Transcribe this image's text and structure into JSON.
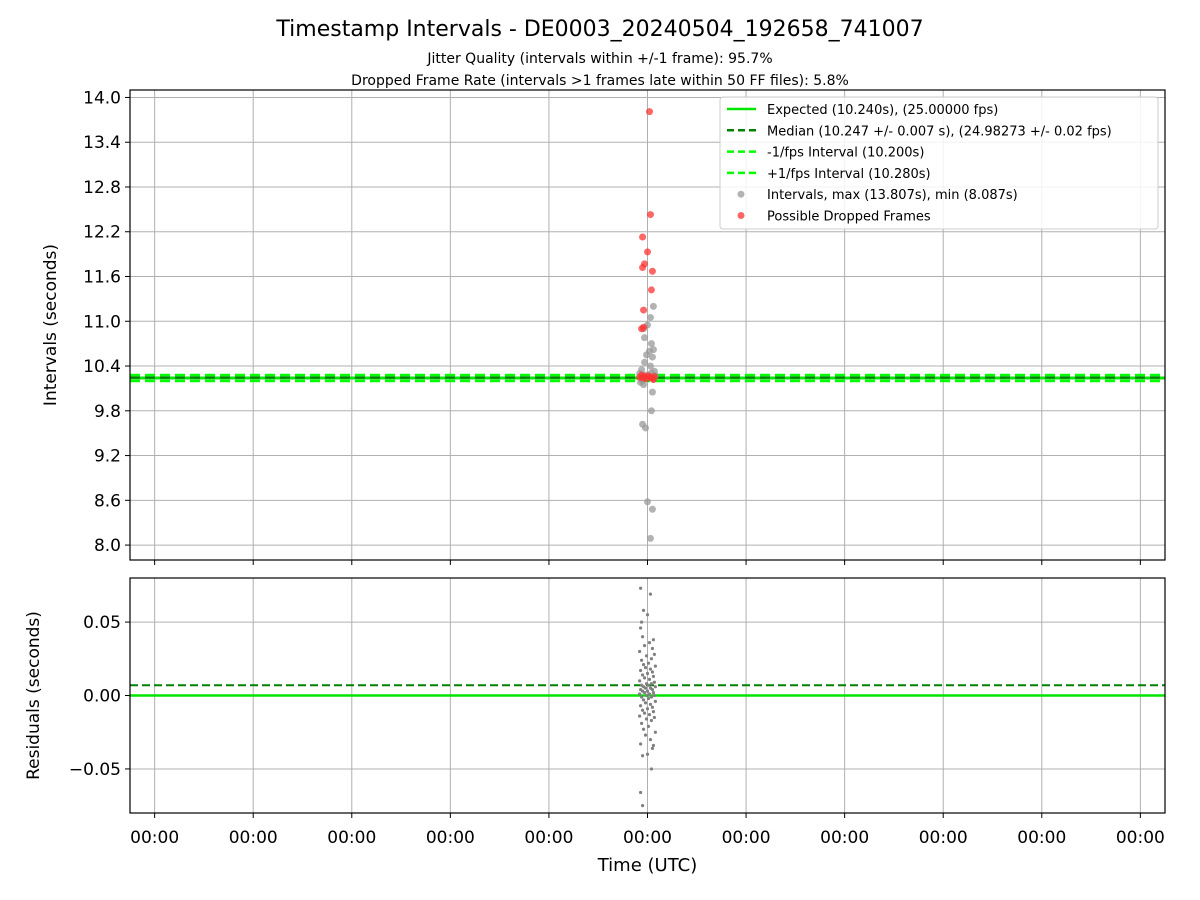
{
  "title": "Timestamp Intervals - DE0003_20240504_192658_741007",
  "subtitle_1": "Jitter Quality (intervals within +/-1 frame): 95.7%",
  "subtitle_2": "Dropped Frame Rate (intervals >1 frames late within 50 FF files): 5.8%",
  "colors": {
    "expected": "#00e600",
    "median": "#008000",
    "interval_band": "#00ff00",
    "intervals": "#999999",
    "dropped": "#ff3333",
    "residuals": "#808080",
    "grid": "#b0b0b0"
  },
  "chart_data": [
    {
      "type": "scatter",
      "panel": "top",
      "ylabel": "Intervals (seconds)",
      "ylim": [
        7.8,
        14.1
      ],
      "yticks": [
        8.0,
        8.6,
        9.2,
        9.8,
        10.4,
        11.0,
        11.6,
        12.2,
        12.8,
        13.4,
        14.0
      ],
      "ytick_labels": [
        "8.0",
        "8.6",
        "9.2",
        "9.8",
        "10.4",
        "11.0",
        "11.6",
        "12.2",
        "12.8",
        "13.4",
        "14.0"
      ],
      "xlim": [
        -5.25,
        5.25
      ],
      "xticks": [
        -5,
        -4,
        -3,
        -2,
        -1,
        0,
        1,
        2,
        3,
        4,
        5
      ],
      "grid": true,
      "legend_position": "top-right",
      "legend": [
        {
          "label": "Expected (10.240s), (25.00000 fps)",
          "style": "solid",
          "color": "#00e600"
        },
        {
          "label": "Median (10.247 +/- 0.007 s), (24.98273 +/- 0.02 fps)",
          "style": "dashed",
          "color": "#008000"
        },
        {
          "label": "-1/fps Interval (10.200s)",
          "style": "dashed",
          "color": "#00ff00"
        },
        {
          "label": "+1/fps Interval (10.280s)",
          "style": "dashed",
          "color": "#00ff00"
        },
        {
          "label": "Intervals, max (13.807s), min (8.087s)",
          "style": "marker",
          "color": "#999999"
        },
        {
          "label": "Possible Dropped Frames",
          "style": "marker",
          "color": "#ff3333"
        }
      ],
      "lines": {
        "expected": 10.24,
        "median": 10.247,
        "minus_1fps": 10.2,
        "plus_1fps": 10.28
      },
      "series": [
        {
          "name": "Intervals, max (13.807s), min (8.087s)",
          "points": [
            [
              -0.08,
              10.3
            ],
            [
              -0.05,
              10.2
            ],
            [
              -0.02,
              10.28
            ],
            [
              0.01,
              10.25
            ],
            [
              0.04,
              10.31
            ],
            [
              0.06,
              10.22
            ],
            [
              -0.06,
              10.35
            ],
            [
              0.03,
              10.4
            ],
            [
              -0.03,
              10.45
            ],
            [
              0.05,
              10.52
            ],
            [
              -0.01,
              10.55
            ],
            [
              0.02,
              10.6
            ],
            [
              0.04,
              10.7
            ],
            [
              0.06,
              10.62
            ],
            [
              -0.03,
              10.78
            ],
            [
              0.0,
              10.95
            ],
            [
              -0.04,
              10.9
            ],
            [
              0.03,
              11.05
            ],
            [
              0.06,
              11.2
            ],
            [
              0.05,
              10.05
            ],
            [
              0.04,
              9.8
            ],
            [
              -0.05,
              9.62
            ],
            [
              -0.02,
              9.57
            ],
            [
              0.0,
              8.58
            ],
            [
              0.05,
              8.48
            ],
            [
              0.03,
              8.09
            ],
            [
              -0.07,
              10.18
            ],
            [
              0.07,
              10.33
            ],
            [
              -0.04,
              10.15
            ],
            [
              0.08,
              10.27
            ]
          ]
        },
        {
          "name": "Possible Dropped Frames",
          "points": [
            [
              0.02,
              13.81
            ],
            [
              0.03,
              12.43
            ],
            [
              -0.05,
              12.13
            ],
            [
              0.0,
              11.93
            ],
            [
              -0.03,
              11.77
            ],
            [
              -0.05,
              11.72
            ],
            [
              0.05,
              11.67
            ],
            [
              0.04,
              11.42
            ],
            [
              -0.04,
              11.15
            ],
            [
              -0.04,
              10.92
            ],
            [
              -0.06,
              10.9
            ],
            [
              -0.08,
              10.25
            ],
            [
              -0.05,
              10.24
            ],
            [
              -0.03,
              10.26
            ],
            [
              -0.01,
              10.23
            ],
            [
              0.01,
              10.27
            ],
            [
              0.03,
              10.25
            ],
            [
              0.05,
              10.24
            ],
            [
              0.07,
              10.26
            ],
            [
              -0.06,
              10.28
            ],
            [
              0.06,
              10.22
            ]
          ]
        }
      ]
    },
    {
      "type": "scatter",
      "panel": "bottom",
      "ylabel": "Residuals (seconds)",
      "xlabel": "Time (UTC)",
      "ylim": [
        -0.08,
        0.08
      ],
      "yticks": [
        -0.05,
        0.0,
        0.05
      ],
      "ytick_labels": [
        "−0.05",
        "0.00",
        "0.05"
      ],
      "xlim": [
        -5.25,
        5.25
      ],
      "xticks": [
        -5,
        -4,
        -3,
        -2,
        -1,
        0,
        1,
        2,
        3,
        4,
        5
      ],
      "xtick_labels": [
        "00:00",
        "00:00",
        "00:00",
        "00:00",
        "00:00",
        "00:00",
        "00:00",
        "00:00",
        "00:00",
        "00:00",
        "00:00"
      ],
      "grid": true,
      "lines": {
        "zero": 0.0,
        "median_residual": 0.007
      },
      "series": [
        {
          "name": "Residuals",
          "points": [
            [
              -0.07,
              0.073
            ],
            [
              0.03,
              0.069
            ],
            [
              -0.04,
              0.058
            ],
            [
              0.0,
              0.055
            ],
            [
              -0.06,
              0.05
            ],
            [
              -0.07,
              0.046
            ],
            [
              -0.05,
              0.04
            ],
            [
              0.06,
              0.038
            ],
            [
              0.02,
              0.036
            ],
            [
              -0.03,
              0.034
            ],
            [
              0.05,
              0.032
            ],
            [
              -0.08,
              0.03
            ],
            [
              0.07,
              0.028
            ],
            [
              -0.01,
              0.027
            ],
            [
              0.04,
              0.025
            ],
            [
              -0.06,
              0.024
            ],
            [
              0.01,
              0.022
            ],
            [
              -0.04,
              0.021
            ],
            [
              0.08,
              0.02
            ],
            [
              -0.02,
              0.019
            ],
            [
              0.03,
              0.018
            ],
            [
              -0.07,
              0.017
            ],
            [
              0.05,
              0.016
            ],
            [
              0.0,
              0.015
            ],
            [
              -0.05,
              0.014
            ],
            [
              0.06,
              0.013
            ],
            [
              -0.03,
              0.012
            ],
            [
              0.02,
              0.011
            ],
            [
              -0.08,
              0.01
            ],
            [
              0.07,
              0.009
            ],
            [
              -0.01,
              0.008
            ],
            [
              0.04,
              0.008
            ],
            [
              -0.06,
              0.007
            ],
            [
              0.01,
              0.007
            ],
            [
              -0.04,
              0.006
            ],
            [
              0.08,
              0.006
            ],
            [
              -0.02,
              0.005
            ],
            [
              0.03,
              0.005
            ],
            [
              -0.07,
              0.004
            ],
            [
              0.05,
              0.004
            ],
            [
              0.0,
              0.003
            ],
            [
              -0.05,
              0.003
            ],
            [
              0.06,
              0.002
            ],
            [
              -0.03,
              0.002
            ],
            [
              0.02,
              0.001
            ],
            [
              -0.08,
              0.001
            ],
            [
              0.07,
              0.0
            ],
            [
              -0.01,
              0.0
            ],
            [
              0.04,
              -0.001
            ],
            [
              -0.06,
              -0.001
            ],
            [
              0.01,
              -0.002
            ],
            [
              -0.04,
              -0.003
            ],
            [
              0.08,
              -0.004
            ],
            [
              -0.02,
              -0.005
            ],
            [
              0.03,
              -0.006
            ],
            [
              -0.07,
              -0.007
            ],
            [
              0.05,
              -0.008
            ],
            [
              0.0,
              -0.009
            ],
            [
              -0.05,
              -0.01
            ],
            [
              0.06,
              -0.011
            ],
            [
              -0.03,
              -0.012
            ],
            [
              0.02,
              -0.013
            ],
            [
              -0.08,
              -0.014
            ],
            [
              0.07,
              -0.015
            ],
            [
              -0.01,
              -0.016
            ],
            [
              0.04,
              -0.017
            ],
            [
              -0.06,
              -0.019
            ],
            [
              0.01,
              -0.021
            ],
            [
              -0.04,
              -0.023
            ],
            [
              0.08,
              -0.025
            ],
            [
              -0.02,
              -0.027
            ],
            [
              0.03,
              -0.03
            ],
            [
              -0.07,
              -0.033
            ],
            [
              0.05,
              -0.036
            ],
            [
              0.0,
              -0.04
            ],
            [
              -0.05,
              -0.041
            ],
            [
              0.06,
              -0.034
            ],
            [
              0.04,
              -0.05
            ],
            [
              -0.07,
              -0.066
            ],
            [
              -0.05,
              -0.075
            ]
          ]
        }
      ]
    }
  ]
}
